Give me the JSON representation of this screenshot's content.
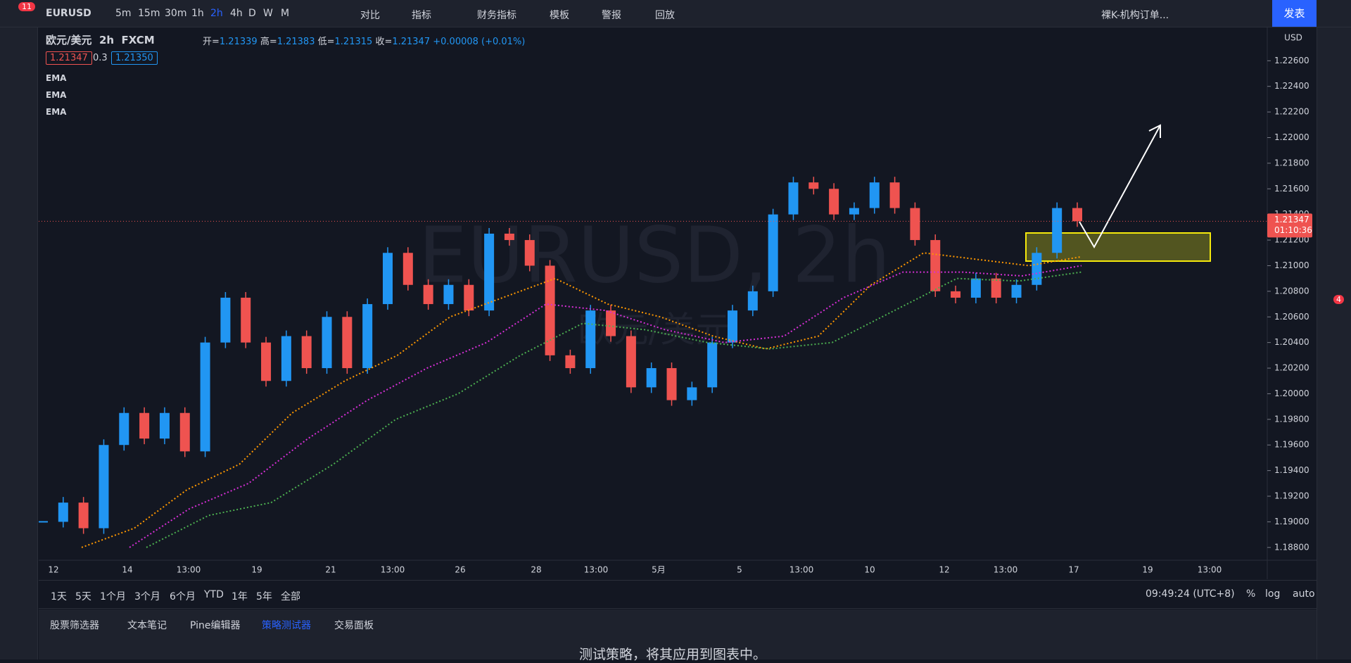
{
  "toolbar": {
    "symbol": "EURUSD",
    "intervals": [
      "5m",
      "15m",
      "30m",
      "1h",
      "2h",
      "4h",
      "D",
      "W",
      "M"
    ],
    "active_interval": "2h",
    "tools": [
      "对比",
      "指标",
      "财务指标",
      "模板",
      "警报",
      "回放"
    ],
    "layout_name": "裸K-机构订单...",
    "publish": "发表",
    "notification_count": "11"
  },
  "legend": {
    "symbol": "欧元/美元",
    "interval": "2h",
    "source": "FXCM",
    "ohlc": [
      {
        "label": "开=",
        "value": "1.21339"
      },
      {
        "label": "高=",
        "value": "1.21383"
      },
      {
        "label": "低=",
        "value": "1.21315"
      },
      {
        "label": "收=",
        "value": "1.21347"
      }
    ],
    "change": "+0.00008 (+0.01%)",
    "bid": "1.21347",
    "spread": "0.3",
    "ask": "1.21350"
  },
  "watermark": {
    "title": "EURUSD, 2h",
    "subtitle": "欧元/美元"
  },
  "chart_data": {
    "type": "candlestick",
    "currency": "USD",
    "up_color": "#2196f3",
    "down_color": "#ef5350",
    "closes": [
      1.19,
      1.1915,
      1.1895,
      1.196,
      1.1985,
      1.1965,
      1.1985,
      1.1955,
      1.204,
      1.2075,
      1.204,
      1.201,
      1.2045,
      1.202,
      1.206,
      1.202,
      1.207,
      1.211,
      1.2085,
      1.207,
      1.2085,
      1.2065,
      1.2125,
      1.212,
      1.21,
      1.203,
      1.202,
      1.2065,
      1.2045,
      1.2005,
      1.202,
      1.1995,
      1.2005,
      1.204,
      1.2065,
      1.208,
      1.214,
      1.2165,
      1.216,
      1.214,
      1.2145,
      1.2165,
      1.2145,
      1.212,
      1.208,
      1.2075,
      1.209,
      1.2075,
      1.2085,
      1.211,
      1.2145,
      1.21347
    ],
    "series": [
      {
        "name": "EMA",
        "color": "#ff9800",
        "values": [
          1.188,
          1.1895,
          1.1925,
          1.1945,
          1.1985,
          1.201,
          1.203,
          1.206,
          1.2075,
          1.209,
          1.207,
          1.206,
          1.2045,
          1.2035,
          1.2045,
          1.2085,
          1.211,
          1.2105,
          1.21,
          1.2107
        ]
      },
      {
        "name": "EMA",
        "color": "#d62fd6",
        "values": [
          1.188,
          1.191,
          1.193,
          1.1965,
          1.1995,
          1.202,
          1.204,
          1.207,
          1.2065,
          1.205,
          1.204,
          1.2045,
          1.2075,
          1.2095,
          1.2095,
          1.2092,
          1.21
        ]
      },
      {
        "name": "EMA",
        "color": "#4caf50",
        "values": [
          1.188,
          1.1905,
          1.1915,
          1.1945,
          1.198,
          1.2,
          1.203,
          1.2055,
          1.205,
          1.204,
          1.2035,
          1.204,
          1.2065,
          1.209,
          1.2088,
          1.2095
        ]
      }
    ],
    "ylim": [
      1.187,
      1.2286
    ],
    "yticks": [
      {
        "value": 1.188,
        "label": "1.18800"
      },
      {
        "value": 1.19,
        "label": "1.19000"
      },
      {
        "value": 1.192,
        "label": "1.19200"
      },
      {
        "value": 1.194,
        "label": "1.19400"
      },
      {
        "value": 1.196,
        "label": "1.19600"
      },
      {
        "value": 1.198,
        "label": "1.19800"
      },
      {
        "value": 1.2,
        "label": "1.20000"
      },
      {
        "value": 1.202,
        "label": "1.20200"
      },
      {
        "value": 1.204,
        "label": "1.20400"
      },
      {
        "value": 1.206,
        "label": "1.20600"
      },
      {
        "value": 1.208,
        "label": "1.20800"
      },
      {
        "value": 1.21,
        "label": "1.21000"
      },
      {
        "value": 1.212,
        "label": "1.21200"
      },
      {
        "value": 1.214,
        "label": "1.21400"
      },
      {
        "value": 1.216,
        "label": "1.21600"
      },
      {
        "value": 1.218,
        "label": "1.21800"
      },
      {
        "value": 1.22,
        "label": "1.22000"
      },
      {
        "value": 1.222,
        "label": "1.22200"
      },
      {
        "value": 1.224,
        "label": "1.22400"
      },
      {
        "value": 1.226,
        "label": "1.22600"
      }
    ],
    "last_price": {
      "value": 1.21347,
      "label": "1.21347"
    },
    "countdown": "01:10:36",
    "time_axis": [
      "12",
      "14",
      "13:00",
      "19",
      "21",
      "13:00",
      "26",
      "28",
      "13:00",
      "5月",
      "5",
      "13:00",
      "10",
      "12",
      "13:00",
      "17",
      "19",
      "13:00"
    ]
  },
  "range_bar": {
    "ranges": [
      "1天",
      "5天",
      "1个月",
      "3个月",
      "6个月",
      "YTD",
      "1年",
      "5年",
      "全部"
    ],
    "clock": "09:49:24 (UTC+8)",
    "options": [
      "%",
      "log",
      "auto"
    ]
  },
  "bottom_panel": {
    "tabs": [
      "股票筛选器",
      "文本笔记",
      "Pine编辑器",
      "策略测试器",
      "交易面板"
    ],
    "active_tab": "策略测试器",
    "message": "测试策略，将其应用到图表中。",
    "alert_count": "4"
  }
}
